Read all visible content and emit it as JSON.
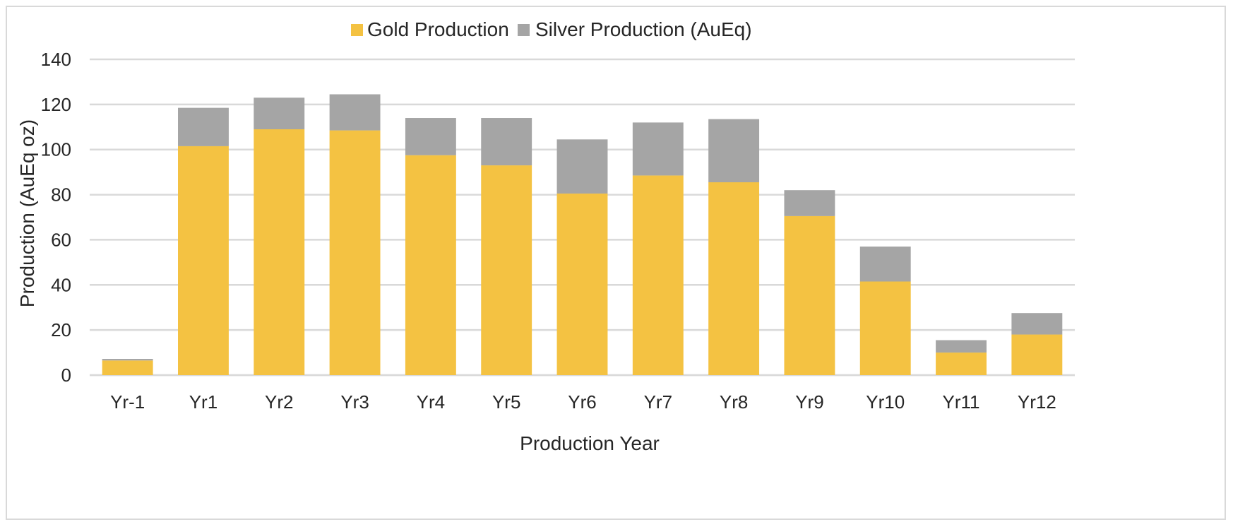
{
  "chart_data": {
    "type": "bar",
    "stacked": true,
    "title": "",
    "xlabel": "Production Year",
    "ylabel": "Production (AuEq oz)",
    "ylim": [
      0,
      140
    ],
    "yticks": [
      0,
      20,
      40,
      60,
      80,
      100,
      120,
      140
    ],
    "grid": true,
    "legend_position": "top-center",
    "categories": [
      "Yr-1",
      "Yr1",
      "Yr2",
      "Yr3",
      "Yr4",
      "Yr5",
      "Yr6",
      "Yr7",
      "Yr8",
      "Yr9",
      "Yr10",
      "Yr11",
      "Yr12"
    ],
    "series": [
      {
        "name": "Gold Production",
        "color": "#F4C242",
        "values": [
          6.5,
          101.5,
          109,
          108.5,
          97.5,
          93,
          80.5,
          88.5,
          85.5,
          70.5,
          41.5,
          10,
          18
        ]
      },
      {
        "name": "Silver Production (AuEq)",
        "color": "#A5A5A5",
        "values": [
          0.7,
          17,
          14,
          16,
          16.5,
          21,
          24,
          23.5,
          28,
          11.5,
          15.5,
          5.5,
          9.5
        ]
      }
    ]
  },
  "colors": {
    "grid": "#d9d9d9",
    "text": "#262626",
    "frame": "#d9d9d9"
  }
}
